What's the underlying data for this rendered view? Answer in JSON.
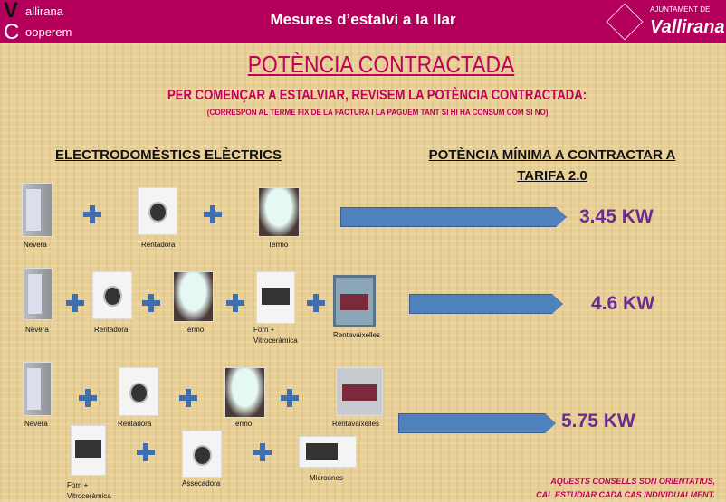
{
  "header": {
    "title": "Mesures d’estalvi a la llar",
    "logo_left": {
      "line1": "allirana",
      "line2": "ooperem",
      "letters": "VC"
    },
    "logo_right": {
      "line1": "AJUNTAMENT DE",
      "line2": "Vallirana"
    },
    "color": "#b4005b"
  },
  "title": "POTÈNCIA CONTRACTADA",
  "subtitle": "PER COMENÇAR A ESTALVIAR, REVISEM LA POTÈNCIA CONTRACTADA:",
  "subnote": "(CORRESPON AL TERME FIX DE LA FACTURA I LA PAGUEM TANT SI HI HA CONSUM COM SI NO)",
  "columns": {
    "left": "ELECTRODOMÈSTICS ELÈCTRICS",
    "right": "POTÈNCIA MÍNIMA A CONTRACTAR A TARIFA 2.0"
  },
  "rows": [
    {
      "power": "3.45 KW",
      "items": [
        {
          "label": "Nevera",
          "icon": "fridge"
        },
        {
          "label": "Rentadora",
          "icon": "washing-machine"
        },
        {
          "label": "Termo",
          "icon": "water-heater"
        }
      ]
    },
    {
      "power": "4.6 KW",
      "items": [
        {
          "label": "Nevera",
          "icon": "fridge"
        },
        {
          "label": "Rentadora",
          "icon": "washing-machine"
        },
        {
          "label": "Termo",
          "icon": "water-heater"
        },
        {
          "label": "Forn +\nVitroceràmica",
          "icon": "oven"
        },
        {
          "label": "Rentavaixelles",
          "icon": "dishwasher"
        }
      ]
    },
    {
      "power": "5.75 KW",
      "items": [
        {
          "label": "Nevera",
          "icon": "fridge"
        },
        {
          "label": "Rentadora",
          "icon": "washing-machine"
        },
        {
          "label": "Termo",
          "icon": "water-heater"
        },
        {
          "label": "Rentavaixelles",
          "icon": "dishwasher"
        },
        {
          "label": "Forn +\nVitroceràmica",
          "icon": "oven"
        },
        {
          "label": "Assecadora",
          "icon": "dryer"
        },
        {
          "label": "Microones",
          "icon": "microwave"
        }
      ]
    }
  ],
  "note": {
    "line1": "AQUESTS CONSELLS SON ORIENTATIUS,",
    "line2": "CAL ESTUDIAR CADA CAS INDIVIDUALMENT."
  },
  "colors": {
    "accent": "#c0005b",
    "arrow": "#4f81bd",
    "power": "#6a2c91",
    "plus": "#3e6fb0"
  }
}
